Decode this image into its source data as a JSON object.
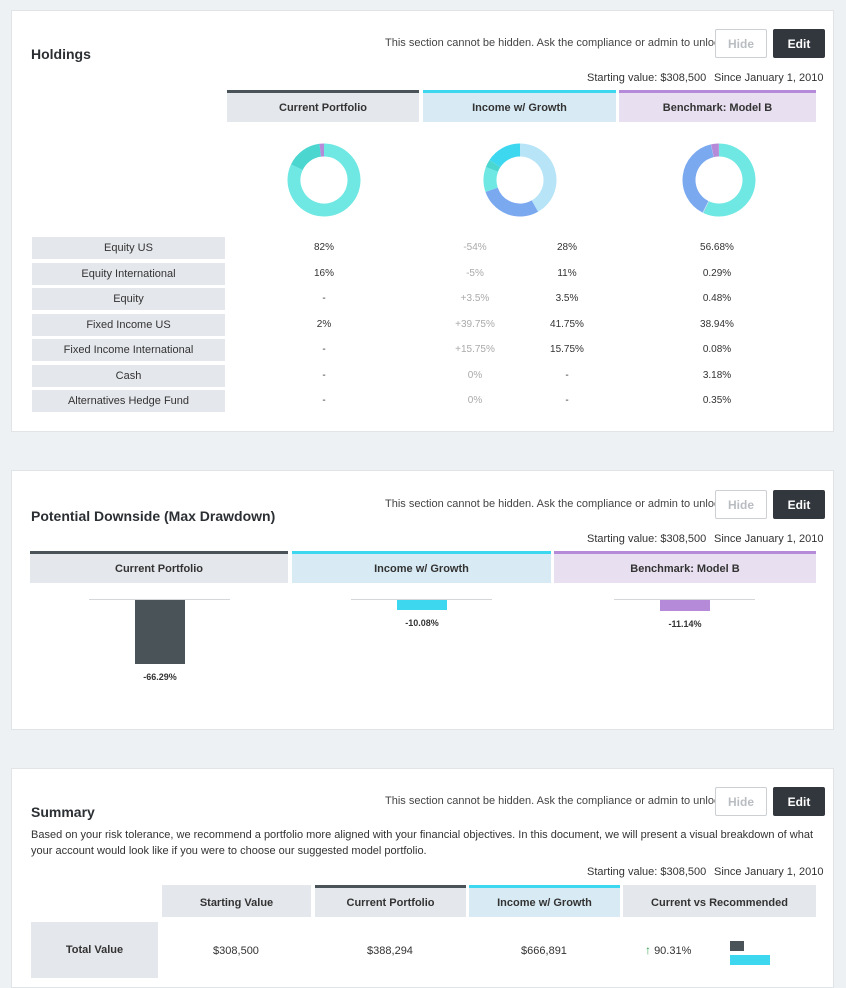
{
  "colors": {
    "current": "#4a5358",
    "income": "#3dd8f0",
    "benchmark": "#b58ad8",
    "equity_us": "#6fe8e3",
    "equity_intl": "#4cd6d0",
    "fixed_income": "#7ba9ef",
    "other": "#b8e4f7"
  },
  "common": {
    "notice": "This section cannot be hidden. Ask the compliance or admin to unlock.",
    "hide_label": "Hide",
    "edit_label": "Edit",
    "starting_value": "Starting value: $308,500",
    "since": "Since January 1, 2010"
  },
  "holdings": {
    "title": "Holdings",
    "columns": [
      "Current Portfolio",
      "Income w/ Growth",
      "Benchmark: Model B"
    ],
    "donuts": [
      {
        "name": "current",
        "segments": [
          82,
          16,
          2
        ]
      },
      {
        "name": "income",
        "segments": [
          28,
          11,
          3.5,
          41.75,
          15.75
        ]
      },
      {
        "name": "benchmark",
        "segments": [
          56.68,
          0.29,
          0.48,
          38.94,
          0.08,
          3.18,
          0.35
        ]
      }
    ],
    "rows": [
      {
        "label": "Equity US",
        "current": "82%",
        "delta": "-54%",
        "income": "28%",
        "benchmark": "56.68%"
      },
      {
        "label": "Equity International",
        "current": "16%",
        "delta": "-5%",
        "income": "11%",
        "benchmark": "0.29%"
      },
      {
        "label": "Equity",
        "current": "-",
        "delta": "+3.5%",
        "income": "3.5%",
        "benchmark": "0.48%"
      },
      {
        "label": "Fixed Income US",
        "current": "2%",
        "delta": "+39.75%",
        "income": "41.75%",
        "benchmark": "38.94%"
      },
      {
        "label": "Fixed Income International",
        "current": "-",
        "delta": "+15.75%",
        "income": "15.75%",
        "benchmark": "0.08%"
      },
      {
        "label": "Cash",
        "current": "-",
        "delta": "0%",
        "income": "-",
        "benchmark": "3.18%"
      },
      {
        "label": "Alternatives Hedge Fund",
        "current": "-",
        "delta": "0%",
        "income": "-",
        "benchmark": "0.35%"
      }
    ]
  },
  "downside": {
    "title": "Potential Downside (Max Drawdown)",
    "columns": [
      "Current Portfolio",
      "Income w/ Growth",
      "Benchmark: Model B"
    ],
    "bars": [
      {
        "name": "current",
        "value": -66.29,
        "label": "-66.29%"
      },
      {
        "name": "income",
        "value": -10.08,
        "label": "-10.08%"
      },
      {
        "name": "benchmark",
        "value": -11.14,
        "label": "-11.14%"
      }
    ]
  },
  "summary": {
    "title": "Summary",
    "description": "Based on your risk tolerance, we recommend a portfolio more aligned with your financial objectives. In this document, we will present a visual breakdown of what your account would look like if you were to choose our suggested model portfolio.",
    "columns": [
      "Starting Value",
      "Current Portfolio",
      "Income w/ Growth",
      "Current vs Recommended"
    ],
    "total_label": "Total Value",
    "starting_value": "$308,500",
    "current_portfolio": "$388,294",
    "income_growth": "$666,891",
    "change": "90.31%",
    "compare_bars": {
      "current": 388294,
      "recommended": 666891
    }
  }
}
